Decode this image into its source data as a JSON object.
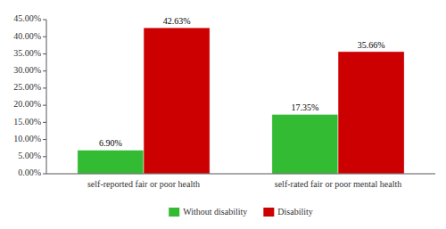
{
  "chart_data": {
    "type": "bar",
    "categories": [
      "self-reported fair or poor health",
      "self-rated fair or poor mental health"
    ],
    "series": [
      {
        "name": "Without disability",
        "color": "#33bb33",
        "values": [
          6.9,
          17.35
        ],
        "value_labels": [
          "6.90%",
          "17.35%"
        ]
      },
      {
        "name": "Disability",
        "color": "#cc0000",
        "values": [
          42.63,
          35.66
        ],
        "value_labels": [
          "42.63%",
          "35.66%"
        ]
      }
    ],
    "ylim": [
      0,
      45
    ],
    "yticks": [
      {
        "value": 0,
        "label": "0.00%"
      },
      {
        "value": 5,
        "label": "5.00%"
      },
      {
        "value": 10,
        "label": "10.00%"
      },
      {
        "value": 15,
        "label": "15.00%"
      },
      {
        "value": 20,
        "label": "20.00%"
      },
      {
        "value": 25,
        "label": "25.00%"
      },
      {
        "value": 30,
        "label": "30.00%"
      },
      {
        "value": 35,
        "label": "35.00%"
      },
      {
        "value": 40,
        "label": "40.00%"
      },
      {
        "value": 45,
        "label": "45.00%"
      }
    ],
    "grid": false,
    "legend": "bottom",
    "data_labels": true
  }
}
